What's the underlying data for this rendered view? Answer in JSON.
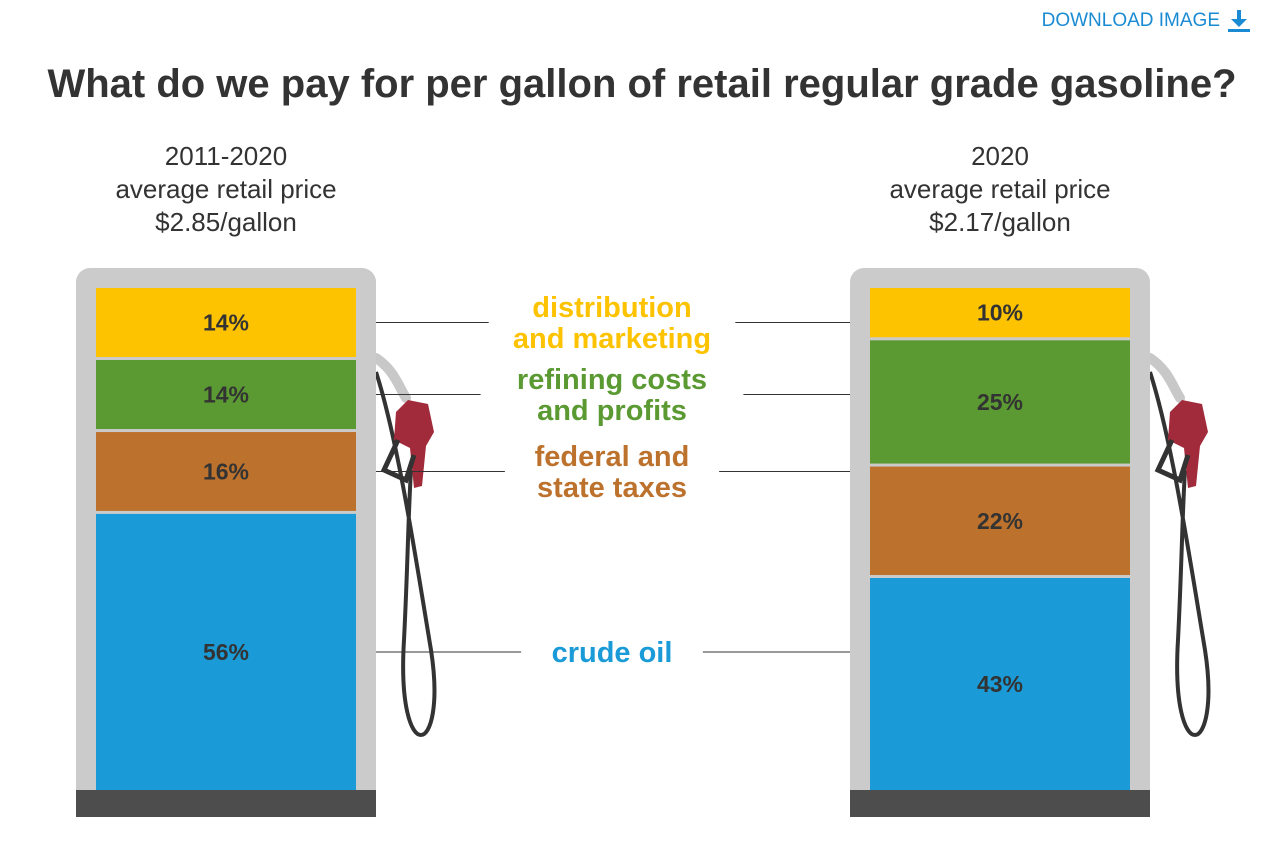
{
  "download_label": "DOWNLOAD IMAGE",
  "title": "What do we pay for per gallon of retail regular grade gasoline?",
  "chart_data": {
    "type": "bar",
    "stacked": true,
    "unit": "%",
    "title": "What do we pay for per gallon of retail regular grade gasoline?",
    "pumps": [
      {
        "period": "2011-2020",
        "subtitle": "average retail price",
        "price": "$2.85/gallon",
        "values": [
          14,
          14,
          16,
          56
        ],
        "labels": [
          "14%",
          "14%",
          "16%",
          "56%"
        ]
      },
      {
        "period": "2020",
        "subtitle": "average retail price",
        "price": "$2.17/gallon",
        "values": [
          10,
          25,
          22,
          43
        ],
        "labels": [
          "10%",
          "25%",
          "22%",
          "43%"
        ]
      }
    ],
    "categories": [
      {
        "lines": [
          "distribution",
          "and marketing"
        ],
        "color": "#fdc300"
      },
      {
        "lines": [
          "refining costs",
          "and profits"
        ],
        "color": "#5b9a32"
      },
      {
        "lines": [
          "federal and",
          "state taxes"
        ],
        "color": "#bc722c"
      },
      {
        "lines": [
          "crude oil"
        ],
        "color": "#1a9bd7"
      }
    ]
  }
}
